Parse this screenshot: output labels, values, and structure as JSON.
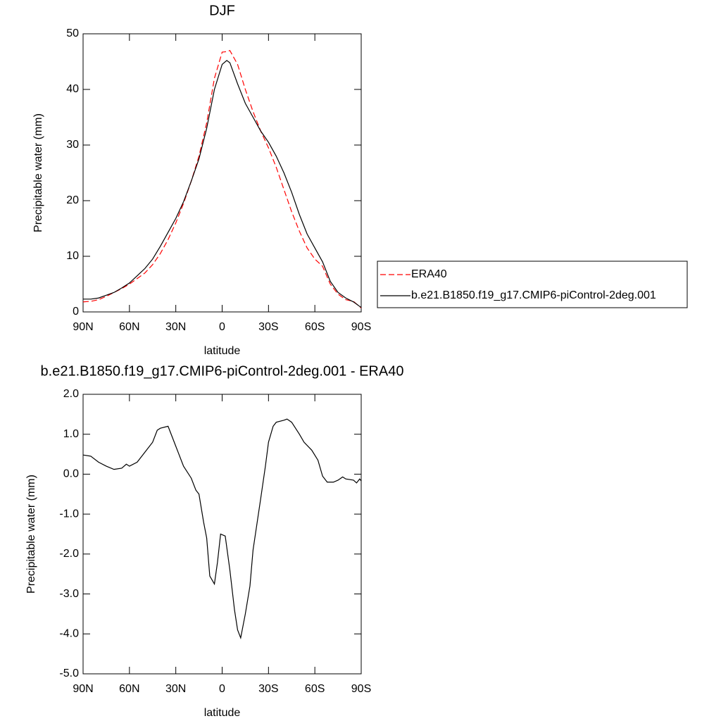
{
  "chart_data": [
    {
      "type": "line",
      "title": "DJF",
      "xlabel": "latitude",
      "ylabel": "Precipitable water (mm)",
      "x": [
        90,
        85,
        80,
        75,
        70,
        65,
        60,
        55,
        50,
        45,
        40,
        35,
        30,
        25,
        20,
        15,
        10,
        5,
        0,
        -3,
        -5,
        -10,
        -15,
        -20,
        -25,
        -30,
        -35,
        -40,
        -45,
        -50,
        -55,
        -60,
        -65,
        -70,
        -75,
        -80,
        -85,
        -90
      ],
      "series": [
        {
          "name": "ERA40",
          "color": "#ff0000",
          "line_style": "dashed",
          "values": [
            1.8,
            1.9,
            2.2,
            2.8,
            3.5,
            4.2,
            5,
            6,
            7,
            8.5,
            10.5,
            13,
            16,
            19.5,
            23.5,
            28,
            34,
            42,
            46.7,
            46.8,
            47,
            44.5,
            40,
            36,
            32.5,
            29.5,
            26,
            22,
            18,
            14.5,
            11.5,
            9.5,
            8.2,
            5,
            3.2,
            2.2,
            1.9,
            0.7
          ]
        },
        {
          "name": "b.e21.B1850.f19_g17.CMIP6-piControl-2deg.001",
          "color": "#000000",
          "line_style": "solid",
          "values": [
            2.3,
            2.3,
            2.5,
            3.0,
            3.5,
            4.3,
            5.2,
            6.5,
            7.8,
            9.5,
            11.8,
            14.3,
            16.8,
            19.8,
            23.5,
            27.5,
            33,
            40,
            44.5,
            45.2,
            44.8,
            41,
            37.5,
            35,
            32.5,
            30.5,
            28,
            25,
            21.5,
            17.5,
            14,
            11.5,
            9,
            5.5,
            3.5,
            2.5,
            1.8,
            0.8
          ]
        }
      ],
      "xlim": [
        90,
        -90
      ],
      "xticks": [
        {
          "value": 90,
          "label": "90N"
        },
        {
          "value": 60,
          "label": "60N"
        },
        {
          "value": 30,
          "label": "30N"
        },
        0,
        {
          "value": -30,
          "label": "30S"
        },
        {
          "value": -60,
          "label": "60S"
        },
        {
          "value": -90,
          "label": "90S"
        }
      ],
      "ylim": [
        0,
        50
      ],
      "yticks": [
        0,
        10,
        20,
        30,
        40,
        50
      ],
      "legend": "right"
    },
    {
      "type": "line",
      "title": "b.e21.B1850.f19_g17.CMIP6-piControl-2deg.001 - ERA40",
      "xlabel": "latitude",
      "ylabel": "Precipitable water (mm)",
      "x": [
        90,
        85,
        80,
        75,
        70,
        65,
        62,
        60,
        55,
        50,
        45,
        42,
        40,
        35,
        32,
        30,
        25,
        20,
        17,
        15,
        12,
        10,
        8,
        5,
        3,
        1,
        -2,
        -5,
        -8,
        -10,
        -12,
        -15,
        -18,
        -20,
        -25,
        -28,
        -30,
        -33,
        -35,
        -40,
        -42,
        -45,
        -50,
        -53,
        -58,
        -62,
        -65,
        -68,
        -72,
        -75,
        -78,
        -80,
        -85,
        -87,
        -89,
        -90
      ],
      "series": [
        {
          "color": "#000000",
          "line_style": "solid",
          "values": [
            0.48,
            0.45,
            0.3,
            0.2,
            0.12,
            0.15,
            0.25,
            0.2,
            0.3,
            0.55,
            0.8,
            1.1,
            1.15,
            1.2,
            0.9,
            0.7,
            0.2,
            -0.1,
            -0.4,
            -0.5,
            -1.2,
            -1.6,
            -2.55,
            -2.75,
            -2.2,
            -1.5,
            -1.55,
            -2.4,
            -3.4,
            -3.9,
            -4.1,
            -3.5,
            -2.8,
            -1.9,
            -0.6,
            0.2,
            0.8,
            1.2,
            1.3,
            1.35,
            1.38,
            1.3,
            1.0,
            0.8,
            0.6,
            0.35,
            -0.05,
            -0.2,
            -0.2,
            -0.15,
            -0.07,
            -0.12,
            -0.15,
            -0.22,
            -0.12,
            -0.17
          ]
        }
      ],
      "xlim": [
        90,
        -90
      ],
      "xticks": [
        {
          "value": 90,
          "label": "90N"
        },
        {
          "value": 60,
          "label": "60N"
        },
        {
          "value": 30,
          "label": "30N"
        },
        0,
        {
          "value": -30,
          "label": "30S"
        },
        {
          "value": -60,
          "label": "60S"
        },
        {
          "value": -90,
          "label": "90S"
        }
      ],
      "ylim": [
        -5,
        2
      ],
      "yticks": [
        {
          "value": -5,
          "label": "-5.0"
        },
        {
          "value": -4,
          "label": "-4.0"
        },
        {
          "value": -3,
          "label": "-3.0"
        },
        {
          "value": -2,
          "label": "-2.0"
        },
        {
          "value": -1,
          "label": "-1.0"
        },
        {
          "value": 0,
          "label": "0.0"
        },
        {
          "value": 1,
          "label": "1.0"
        },
        {
          "value": 2,
          "label": "2.0"
        }
      ]
    }
  ]
}
